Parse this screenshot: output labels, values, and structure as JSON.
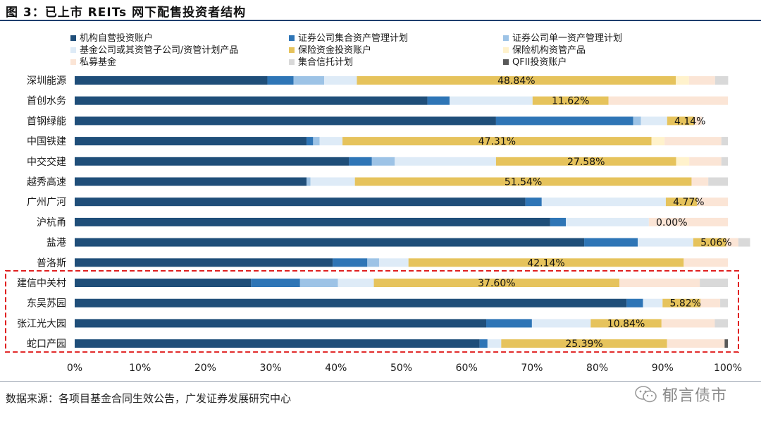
{
  "title": "图 3：已上市 REITs 网下配售投资者结构",
  "source": "数据来源：各项目基金合同生效公告，广发证券发展研究中心",
  "watermark": "郁言债市",
  "chart_data": {
    "type": "bar",
    "orientation": "horizontal",
    "stacked": "percent",
    "categories": [
      "深圳能源",
      "首创水务",
      "首钢绿能",
      "中国铁建",
      "中交交建",
      "越秀高速",
      "广州广河",
      "沪杭甬",
      "盐港",
      "普洛斯",
      "建信中关村",
      "东吴苏园",
      "张江光大园",
      "蛇口产园"
    ],
    "highlighted_categories": [
      "建信中关村",
      "东吴苏园",
      "张江光大园",
      "蛇口产园"
    ],
    "highlight_color": "#e02020",
    "xlim": [
      0,
      100
    ],
    "xticks": [
      "0%",
      "10%",
      "20%",
      "30%",
      "40%",
      "50%",
      "60%",
      "70%",
      "80%",
      "90%",
      "100%"
    ],
    "legend_position": "top",
    "grid": false,
    "series": [
      {
        "name": "机构自营投资账户",
        "color": "#1f4e79",
        "values": [
          29.5,
          54.0,
          64.5,
          35.5,
          42.0,
          35.5,
          69.0,
          72.8,
          78.0,
          39.5,
          27.0,
          84.5,
          63.0,
          62.0
        ]
      },
      {
        "name": "证券公司集合资产管理计划",
        "color": "#2e75b6",
        "values": [
          4.0,
          3.4,
          21.0,
          1.0,
          3.5,
          0.0,
          2.5,
          2.4,
          8.2,
          5.3,
          7.5,
          2.5,
          7.0,
          1.2
        ]
      },
      {
        "name": "证券公司单一资产管理计划",
        "color": "#9dc3e6",
        "values": [
          4.7,
          0.0,
          1.2,
          1.0,
          3.5,
          0.6,
          0.0,
          0.0,
          0.0,
          1.8,
          5.8,
          0.0,
          0.0,
          0.0
        ]
      },
      {
        "name": "基金公司或其资管子公司/资管计划产品",
        "color": "#deebf7",
        "values": [
          5.0,
          12.7,
          4.0,
          3.5,
          15.5,
          6.8,
          19.0,
          12.7,
          8.5,
          4.5,
          5.5,
          3.0,
          9.0,
          2.1
        ]
      },
      {
        "name": "保险资金投资账户",
        "color": "#e6c35c",
        "values": [
          48.84,
          11.62,
          4.14,
          47.31,
          27.58,
          51.54,
          4.77,
          0.0,
          5.06,
          42.14,
          37.6,
          5.82,
          10.84,
          25.39
        ]
      },
      {
        "name": "保险机构资管产品",
        "color": "#fff2cc",
        "values": [
          2.0,
          0.0,
          0.0,
          2.0,
          2.0,
          0.0,
          0.0,
          0.0,
          0.0,
          0.0,
          0.0,
          0.0,
          0.0,
          0.0
        ]
      },
      {
        "name": "私募基金",
        "color": "#fbe5d6",
        "values": [
          4.0,
          18.28,
          1.16,
          8.69,
          4.92,
          2.56,
          4.73,
          12.1,
          1.84,
          6.76,
          12.3,
          3.0,
          8.16,
          8.81
        ]
      },
      {
        "name": "集合信托计划",
        "color": "#d9d9d9",
        "values": [
          2.0,
          0.0,
          0.0,
          1.0,
          1.0,
          3.0,
          0.0,
          0.0,
          1.8,
          0.0,
          4.3,
          1.18,
          2.0,
          0.0
        ]
      },
      {
        "name": "QFII投资账户",
        "color": "#595959",
        "values": [
          0,
          0,
          0,
          0,
          0,
          0,
          0,
          0,
          0,
          0,
          0,
          0,
          0,
          0.5
        ]
      }
    ],
    "data_labels": [
      "48.84%",
      "11.62%",
      "4.14%",
      "47.31%",
      "27.58%",
      "51.54%",
      "4.77%",
      "0.00%",
      "5.06%",
      "42.14%",
      "37.60%",
      "5.82%",
      "10.84%",
      "25.39%"
    ]
  }
}
